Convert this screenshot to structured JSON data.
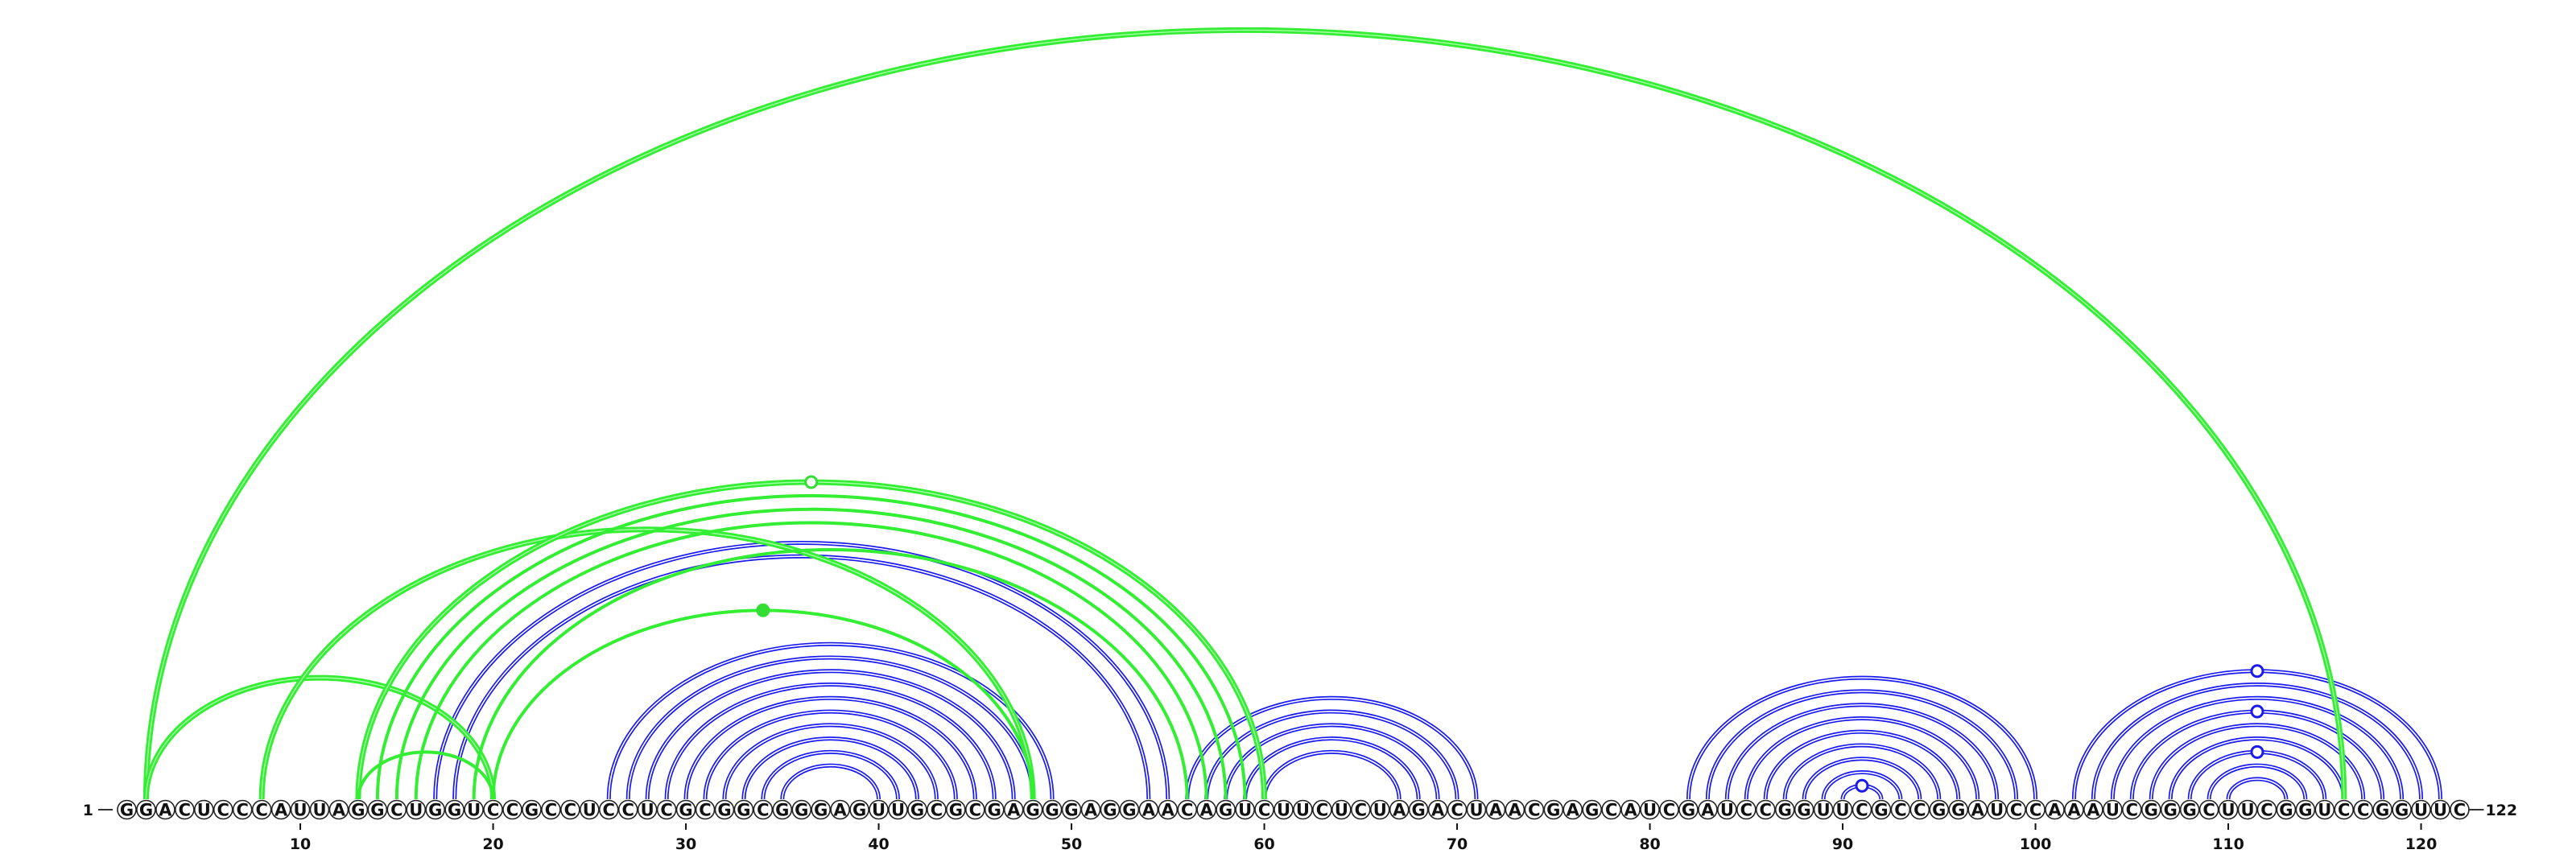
{
  "sequence": "GGACUCCCAUUAGGCUGGUCCGCCUCCUCGCGGCGGGAGUUGCGCGAGGGAGGAACAGUCUUCUCUAGACUAACGAGCAUCGAUCCGGUUCGCCGGAUCCAAAUCGGGCUUCGGUCCGGUUC",
  "start_label": "1",
  "end_label": "122",
  "axis_ticks": [
    10,
    20,
    30,
    40,
    50,
    60,
    70,
    80,
    90,
    100,
    110,
    120
  ],
  "colors": {
    "green_arc": "#33ee33",
    "blue_arc": "#1a1aee",
    "green_marker": "#33dd33",
    "blue_marker": "#1a1aee"
  },
  "green_arc_groups": [
    {
      "i": 2,
      "j": 116,
      "weight": "heavy"
    },
    {
      "i": 2,
      "j": 20,
      "weight": "heavy"
    },
    {
      "i": 8,
      "j": 48,
      "weight": "heavy"
    },
    {
      "i": 13,
      "j": 60,
      "weight": "heavy"
    },
    {
      "i": 14,
      "j": 59,
      "weight": "light"
    },
    {
      "i": 15,
      "j": 58,
      "weight": "light"
    },
    {
      "i": 16,
      "j": 57,
      "weight": "light"
    },
    {
      "i": 19,
      "j": 56,
      "weight": "light"
    },
    {
      "i": 20,
      "j": 48,
      "weight": "light"
    },
    {
      "i": 13,
      "j": 20,
      "weight": "light"
    }
  ],
  "blue_arc_groups": [
    {
      "i": 17,
      "j": 55
    },
    {
      "i": 18,
      "j": 54
    },
    {
      "i": 26,
      "j": 49
    },
    {
      "i": 27,
      "j": 48
    },
    {
      "i": 28,
      "j": 47
    },
    {
      "i": 29,
      "j": 46
    },
    {
      "i": 30,
      "j": 45
    },
    {
      "i": 31,
      "j": 44
    },
    {
      "i": 32,
      "j": 43
    },
    {
      "i": 33,
      "j": 42
    },
    {
      "i": 34,
      "j": 41
    },
    {
      "i": 35,
      "j": 40
    },
    {
      "i": 56,
      "j": 71
    },
    {
      "i": 57,
      "j": 70
    },
    {
      "i": 58,
      "j": 69
    },
    {
      "i": 59,
      "j": 68
    },
    {
      "i": 60,
      "j": 67
    },
    {
      "i": 82,
      "j": 100
    },
    {
      "i": 83,
      "j": 99
    },
    {
      "i": 84,
      "j": 98
    },
    {
      "i": 85,
      "j": 97
    },
    {
      "i": 86,
      "j": 96
    },
    {
      "i": 87,
      "j": 95
    },
    {
      "i": 88,
      "j": 94
    },
    {
      "i": 89,
      "j": 93
    },
    {
      "i": 90,
      "j": 92
    },
    {
      "i": 102,
      "j": 121
    },
    {
      "i": 103,
      "j": 120
    },
    {
      "i": 104,
      "j": 119
    },
    {
      "i": 105,
      "j": 118
    },
    {
      "i": 106,
      "j": 117
    },
    {
      "i": 107,
      "j": 116
    },
    {
      "i": 108,
      "j": 115
    },
    {
      "i": 109,
      "j": 114
    },
    {
      "i": 110,
      "j": 113
    }
  ],
  "markers": [
    {
      "pos": 36.5,
      "arc": "13-60",
      "color": "green_marker",
      "filled": false
    },
    {
      "pos": 36.5,
      "arc": "20-48",
      "color": "green_marker",
      "filled": true
    },
    {
      "pos": 91,
      "arc": "90-92",
      "color": "blue_marker",
      "filled": false
    },
    {
      "pos": 111.5,
      "arc": "102-121",
      "color": "blue_marker",
      "filled": false
    },
    {
      "pos": 111.5,
      "arc": "105-118",
      "color": "blue_marker",
      "filled": false
    },
    {
      "pos": 111.5,
      "arc": "108-115",
      "color": "blue_marker",
      "filled": false
    }
  ]
}
